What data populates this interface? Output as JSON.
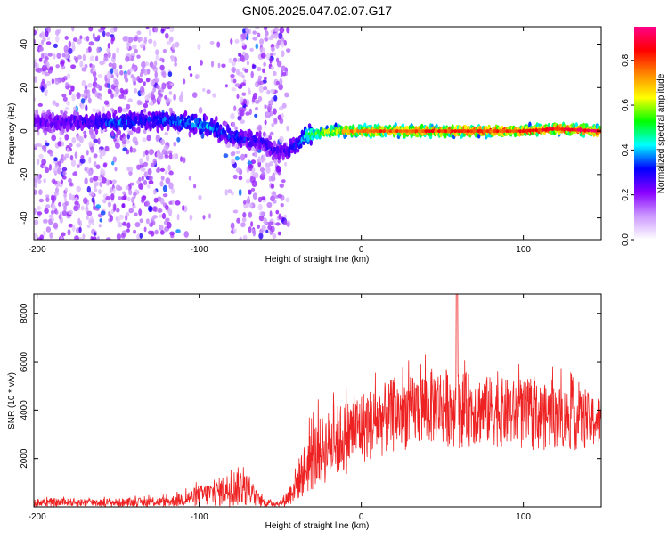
{
  "title": "GN05.2025.047.02.07.G17",
  "chart_data": [
    {
      "type": "heatmap",
      "xlabel": "Height of straight line (km)",
      "ylabel": "Frequency (Hz)",
      "xlim": [
        -202,
        148
      ],
      "ylim": [
        -50,
        48
      ],
      "xticks": [
        -200,
        -100,
        0,
        100
      ],
      "yticks": [
        -40,
        -20,
        0,
        20,
        40
      ],
      "colorbar": {
        "label": "Normalized spectral amplitude",
        "range": [
          0,
          0.95
        ],
        "ticks": [
          0,
          0.2,
          0.4,
          0.6,
          0.8
        ],
        "tick_labels": [
          "0.0",
          "0.2",
          "0.4",
          "0.6",
          "0.8"
        ],
        "colors": [
          "#ffffff",
          "#cc99ff",
          "#8800ff",
          "#0000ff",
          "#00ffff",
          "#00ff00",
          "#ffff00",
          "#ff8800",
          "#ff0000",
          "#ff0088"
        ]
      },
      "ridge": {
        "x": [
          -202,
          -190,
          -170,
          -160,
          -150,
          -140,
          -130,
          -120,
          -110,
          -100,
          -90,
          -80,
          -70,
          -60,
          -55,
          -50,
          -45,
          -40,
          -35,
          -30,
          -25,
          -20,
          -10,
          0,
          20,
          40,
          60,
          80,
          100,
          120,
          148
        ],
        "frequency": [
          4,
          4,
          4,
          4,
          4,
          4.5,
          5,
          5,
          4,
          3,
          1,
          -2,
          -4,
          -5,
          -8,
          -10,
          -9,
          -6,
          -3,
          -1,
          -1,
          0,
          0,
          0,
          0,
          0,
          0,
          0,
          0,
          1,
          0
        ],
        "amplitude": [
          0.25,
          0.28,
          0.3,
          0.35,
          0.38,
          0.36,
          0.35,
          0.37,
          0.4,
          0.42,
          0.38,
          0.35,
          0.33,
          0.3,
          0.28,
          0.28,
          0.3,
          0.35,
          0.45,
          0.55,
          0.62,
          0.68,
          0.74,
          0.77,
          0.8,
          0.82,
          0.84,
          0.83,
          0.85,
          0.86,
          0.9
        ]
      },
      "scatter_region": {
        "x_range": [
          -202,
          -45
        ],
        "frequency_range": [
          -50,
          48
        ],
        "amplitude": [
          0.05,
          0.2
        ]
      }
    },
    {
      "type": "line",
      "xlabel": "Height of straight line (km)",
      "ylabel": "SNR (10 * v/v)",
      "xlim": [
        -202,
        148
      ],
      "ylim": [
        0,
        8800
      ],
      "xticks": [
        -200,
        -100,
        0,
        100
      ],
      "yticks": [
        2000,
        4000,
        6000,
        8000
      ],
      "color": "#ee2222",
      "envelope": {
        "x": [
          -202,
          -150,
          -120,
          -110,
          -100,
          -90,
          -80,
          -75,
          -70,
          -65,
          -60,
          -50,
          -45,
          -40,
          -35,
          -30,
          -20,
          -10,
          0,
          10,
          20,
          30,
          40,
          50,
          60,
          70,
          80,
          90,
          100,
          110,
          120,
          130,
          148
        ],
        "lo": [
          0,
          0,
          0,
          0,
          0,
          0,
          0,
          0,
          0,
          0,
          0,
          0,
          0,
          200,
          400,
          600,
          1000,
          1300,
          1700,
          2000,
          2200,
          2400,
          2500,
          2500,
          2400,
          2500,
          2500,
          2400,
          2300,
          2300,
          2400,
          2300,
          2400
        ],
        "hi": [
          350,
          350,
          400,
          600,
          900,
          1100,
          1500,
          1700,
          1300,
          700,
          350,
          250,
          800,
          1800,
          2600,
          3400,
          4000,
          4400,
          4800,
          5000,
          5300,
          5400,
          5700,
          5800,
          5600,
          5500,
          5400,
          5300,
          5200,
          5100,
          5000,
          4900,
          4600
        ]
      },
      "peak": {
        "x": 59,
        "y": 8800
      }
    }
  ]
}
